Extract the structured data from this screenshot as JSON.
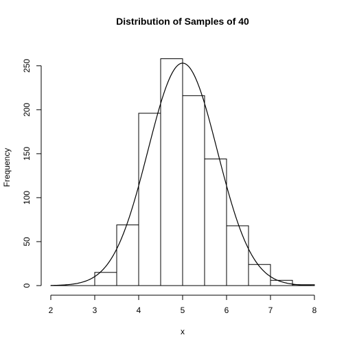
{
  "chart_data": {
    "type": "bar",
    "title": "Distribution of Samples of 40",
    "xlabel": "x",
    "ylabel": "Frequency",
    "xlim": [
      2,
      8
    ],
    "ylim": [
      0,
      260
    ],
    "xticks": [
      "2",
      "3",
      "4",
      "5",
      "6",
      "7",
      "8"
    ],
    "yticks": [
      "0",
      "50",
      "100",
      "150",
      "200",
      "250"
    ],
    "bins": [
      {
        "x0": 2.0,
        "x1": 2.5,
        "count": 0
      },
      {
        "x0": 2.5,
        "x1": 3.0,
        "count": 0
      },
      {
        "x0": 3.0,
        "x1": 3.5,
        "count": 15
      },
      {
        "x0": 3.5,
        "x1": 4.0,
        "count": 69
      },
      {
        "x0": 4.0,
        "x1": 4.5,
        "count": 196
      },
      {
        "x0": 4.5,
        "x1": 5.0,
        "count": 258
      },
      {
        "x0": 5.0,
        "x1": 5.5,
        "count": 216
      },
      {
        "x0": 5.5,
        "x1": 6.0,
        "count": 144
      },
      {
        "x0": 6.0,
        "x1": 6.5,
        "count": 68
      },
      {
        "x0": 6.5,
        "x1": 7.0,
        "count": 24
      },
      {
        "x0": 7.0,
        "x1": 7.5,
        "count": 6
      },
      {
        "x0": 7.5,
        "x1": 8.0,
        "count": 1
      }
    ],
    "curve": {
      "type": "normal-density",
      "mean": 5.0,
      "sd": 0.79,
      "peak": 253
    },
    "grid": false,
    "legend": "none"
  }
}
